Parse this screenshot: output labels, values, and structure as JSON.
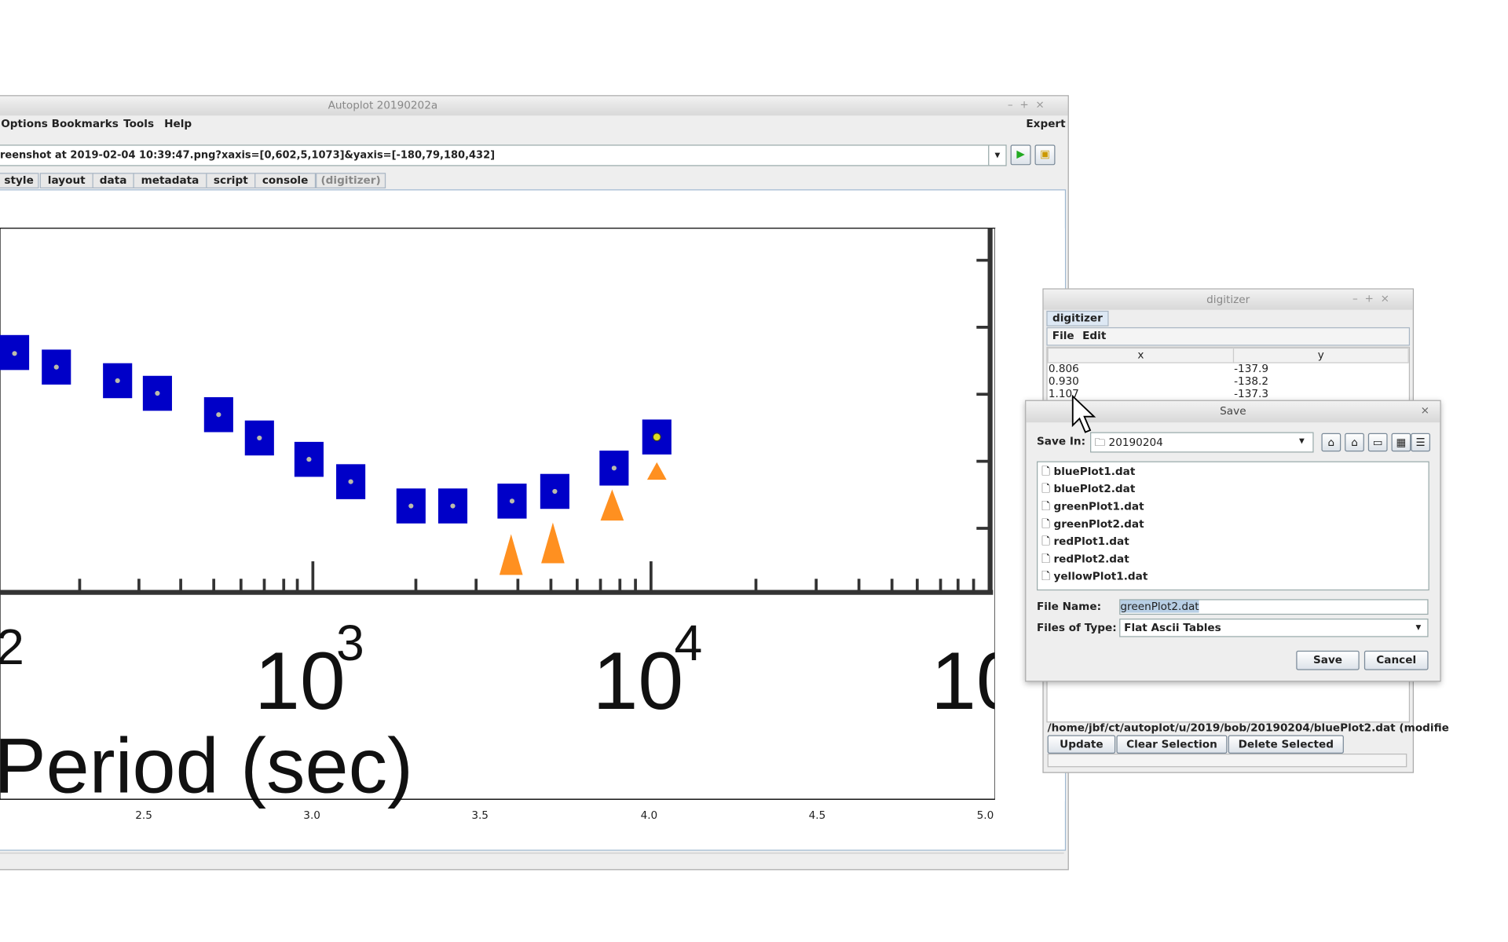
{
  "main_window": {
    "title": "Autoplot 20190202a",
    "menu": [
      "Options",
      "Bookmarks",
      "Tools",
      "Help"
    ],
    "expert": "Expert",
    "uri": "reenshot at 2019-02-04 10:39:47.png?xaxis=[0,602,5,1073]&yaxis=[-180,79,180,432]",
    "tabs": [
      "style",
      "layout",
      "data",
      "metadata",
      "script",
      "console",
      "(digitizer)"
    ],
    "plot": {
      "image_labels": [
        "2",
        "10",
        "3",
        "10",
        "4",
        "10",
        "Period (sec)"
      ],
      "x_ticks": [
        "2.5",
        "3.0",
        "3.5",
        "4.0",
        "4.5",
        "5.0"
      ]
    }
  },
  "digitizer": {
    "title": "digitizer",
    "tab": "digitizer",
    "menu": [
      "File",
      "Edit"
    ],
    "columns": [
      "x",
      "y"
    ],
    "rows": [
      [
        "0.806",
        "-137.9"
      ],
      [
        "0.930",
        "-138.2"
      ],
      [
        "1.107",
        "-137.3"
      ]
    ],
    "status": "/home/jbf/ct/autoplot/u/2019/bob/20190204/bluePlot2.dat (modifie",
    "buttons": [
      "Update",
      "Clear Selection",
      "Delete Selected"
    ]
  },
  "save_dialog": {
    "title": "Save",
    "save_in_label": "Save In:",
    "folder": "20190204",
    "files": [
      "bluePlot1.dat",
      "bluePlot2.dat",
      "greenPlot1.dat",
      "greenPlot2.dat",
      "redPlot1.dat",
      "redPlot2.dat",
      "yellowPlot1.dat"
    ],
    "file_name_label": "File Name:",
    "file_name": "greenPlot2.dat",
    "files_of_type_label": "Files of Type:",
    "file_type": "Flat Ascii Tables",
    "buttons": [
      "Save",
      "Cancel"
    ]
  }
}
